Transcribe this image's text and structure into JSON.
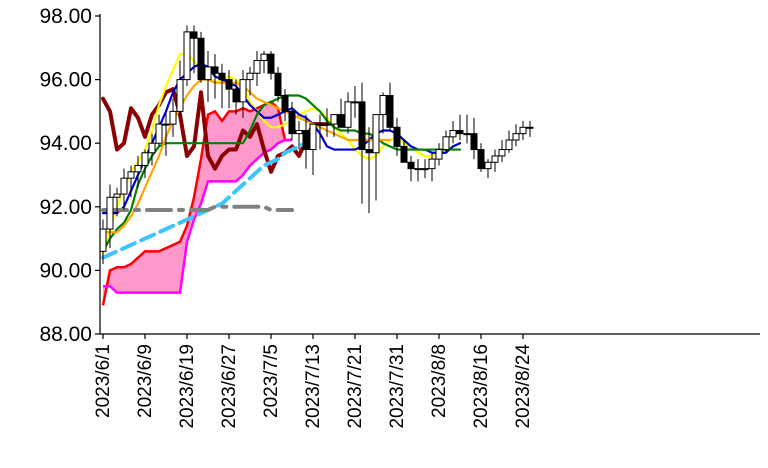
{
  "chart_data": {
    "type": "candlestick",
    "title": "",
    "xlabel": "",
    "ylabel": "",
    "ylim": [
      88,
      98
    ],
    "grid": false,
    "legend": "none",
    "y_ticks": [
      "88.00",
      "90.00",
      "92.00",
      "94.00",
      "96.00",
      "98.00"
    ],
    "x_tick_labels": [
      "2023/6/1",
      "2023/6/9",
      "2023/6/19",
      "2023/6/27",
      "2023/7/5",
      "2023/7/13",
      "2023/7/21",
      "2023/7/31",
      "2023/8/8",
      "2023/8/16",
      "2023/8/24"
    ],
    "dates": [
      "2023/6/1",
      "2023/6/2",
      "2023/6/5",
      "2023/6/6",
      "2023/6/7",
      "2023/6/8",
      "2023/6/9",
      "2023/6/12",
      "2023/6/13",
      "2023/6/14",
      "2023/6/15",
      "2023/6/16",
      "2023/6/19",
      "2023/6/20",
      "2023/6/21",
      "2023/6/22",
      "2023/6/23",
      "2023/6/26",
      "2023/6/27",
      "2023/6/28",
      "2023/6/29",
      "2023/6/30",
      "2023/7/3",
      "2023/7/4",
      "2023/7/5",
      "2023/7/6",
      "2023/7/7",
      "2023/7/10",
      "2023/7/11",
      "2023/7/12",
      "2023/7/13",
      "2023/7/14",
      "2023/7/17",
      "2023/7/18",
      "2023/7/19",
      "2023/7/20",
      "2023/7/21",
      "2023/7/24",
      "2023/7/25",
      "2023/7/26",
      "2023/7/27",
      "2023/7/28",
      "2023/7/31",
      "2023/8/1",
      "2023/8/2",
      "2023/8/3",
      "2023/8/4",
      "2023/8/7",
      "2023/8/8",
      "2023/8/9",
      "2023/8/10",
      "2023/8/11",
      "2023/8/14",
      "2023/8/15",
      "2023/8/16",
      "2023/8/17",
      "2023/8/18",
      "2023/8/21",
      "2023/8/22",
      "2023/8/23",
      "2023/8/24",
      "2023/8/25"
    ],
    "candles": {
      "open": [
        90.6,
        91.3,
        92.3,
        92.4,
        92.9,
        93.1,
        93.3,
        93.7,
        94.0,
        94.6,
        94.6,
        95.0,
        96.0,
        97.5,
        97.3,
        96.0,
        96.4,
        96.2,
        96.0,
        95.7,
        95.3,
        96.0,
        96.2,
        96.6,
        96.8,
        96.2,
        95.5,
        95.0,
        94.3,
        94.4,
        93.8,
        94.6,
        94.6,
        94.6,
        94.9,
        94.5,
        95.3,
        95.3,
        93.8,
        93.7,
        94.9,
        95.5,
        94.5,
        93.9,
        93.4,
        93.2,
        93.2,
        93.2,
        93.5,
        93.8,
        94.2,
        94.4,
        94.3,
        94.3,
        93.8,
        93.2,
        93.4,
        93.6,
        93.8,
        94.1,
        94.3,
        94.5
      ],
      "high": [
        91.6,
        92.7,
        92.6,
        93.2,
        93.3,
        93.6,
        93.8,
        94.3,
        94.9,
        95.0,
        95.4,
        96.6,
        97.7,
        97.7,
        97.5,
        96.9,
        96.8,
        96.5,
        96.3,
        96.0,
        96.3,
        96.4,
        96.9,
        96.9,
        96.9,
        96.4,
        95.7,
        95.3,
        94.7,
        94.9,
        94.3,
        94.9,
        95.1,
        94.9,
        95.4,
        95.6,
        95.8,
        95.9,
        94.5,
        94.4,
        95.6,
        95.9,
        94.8,
        94.1,
        93.6,
        93.5,
        93.5,
        93.7,
        94.0,
        94.4,
        94.7,
        94.9,
        94.9,
        94.8,
        94.0,
        93.5,
        93.8,
        94.1,
        94.4,
        94.6,
        94.7,
        94.7
      ],
      "low": [
        90.2,
        90.7,
        91.7,
        91.9,
        92.3,
        92.6,
        92.9,
        93.3,
        93.9,
        93.6,
        94.2,
        94.8,
        95.8,
        96.2,
        95.9,
        95.3,
        95.4,
        95.1,
        95.1,
        94.9,
        94.8,
        95.5,
        95.8,
        96.2,
        96.0,
        95.3,
        94.7,
        94.1,
        93.8,
        93.2,
        93.0,
        93.8,
        94.2,
        94.2,
        94.5,
        94.3,
        94.8,
        92.1,
        91.8,
        92.2,
        94.3,
        94.4,
        93.6,
        93.4,
        92.8,
        92.8,
        92.9,
        92.8,
        93.3,
        93.7,
        94.0,
        94.1,
        94.0,
        93.5,
        93.1,
        92.9,
        93.1,
        93.4,
        93.7,
        93.9,
        94.1,
        94.2
      ],
      "close": [
        91.3,
        92.3,
        92.4,
        92.9,
        93.1,
        93.3,
        93.7,
        94.0,
        94.6,
        94.6,
        95.0,
        96.0,
        97.5,
        97.3,
        96.0,
        96.4,
        96.2,
        96.0,
        95.7,
        95.3,
        96.0,
        96.2,
        96.6,
        96.8,
        96.2,
        95.5,
        95.0,
        94.3,
        94.4,
        93.8,
        94.6,
        94.6,
        94.6,
        94.9,
        94.5,
        95.3,
        95.3,
        93.8,
        93.7,
        94.9,
        95.5,
        94.5,
        93.9,
        93.4,
        93.2,
        93.2,
        93.2,
        93.5,
        93.8,
        94.2,
        94.4,
        94.3,
        94.3,
        93.8,
        93.2,
        93.4,
        93.6,
        93.8,
        94.1,
        94.3,
        94.5,
        94.5
      ]
    },
    "lines": [
      {
        "color": "#8b0000",
        "values": [
          95.4,
          95.0,
          93.8,
          94.0,
          95.1,
          94.8,
          94.2,
          94.9,
          95.2,
          95.6,
          95.7,
          94.9,
          93.6,
          93.9,
          95.6,
          93.6,
          93.2,
          93.6,
          93.8,
          93.8,
          94.4,
          94.2,
          94.6,
          93.8,
          93.1,
          93.6,
          93.7,
          93.9,
          93.6,
          94.1,
          94.6,
          94.6,
          94.6
        ]
      },
      {
        "color": "#ffff00",
        "values": [
          90.5,
          91.3,
          92.0,
          92.6,
          93.1,
          93.4,
          93.8,
          94.4,
          95.2,
          95.8,
          96.3,
          96.8,
          96.8,
          96.6,
          96.3,
          96.1,
          95.9,
          96.0,
          96.1,
          96.0,
          95.8,
          95.3,
          95.0,
          94.7,
          94.5,
          94.5,
          94.6,
          94.7,
          94.9,
          95.0,
          95.1,
          95.0,
          94.8,
          94.5,
          94.3,
          94.1,
          93.8,
          93.6,
          93.5,
          93.6,
          93.9,
          94.1,
          94.2,
          94.0,
          93.9,
          93.7,
          93.6,
          93.6,
          93.7,
          93.8,
          93.9,
          94.0
        ]
      },
      {
        "color": "#0000cd",
        "values": [
          91.8,
          91.8,
          91.8,
          92.0,
          92.5,
          93.0,
          93.5,
          94.0,
          94.5,
          95.0,
          95.6,
          96.0,
          96.2,
          96.4,
          96.5,
          96.4,
          96.1,
          96.0,
          95.9,
          95.8,
          95.5,
          95.2,
          95.0,
          94.8,
          94.8,
          94.9,
          95.0,
          95.1,
          94.9,
          94.8,
          94.6,
          94.3,
          93.9,
          93.8,
          93.8,
          93.8,
          93.8,
          93.9,
          94.1,
          94.3,
          94.4,
          94.4,
          94.3,
          94.1,
          93.9,
          93.8,
          93.8,
          93.7,
          93.7,
          93.7,
          93.9,
          94.0
        ]
      },
      {
        "color": "#008000",
        "values": [
          90.6,
          91.0,
          91.3,
          91.5,
          91.9,
          92.7,
          93.2,
          93.6,
          93.9,
          94.0,
          94.0,
          94.0,
          94.0,
          94.0,
          94.0,
          94.0,
          94.0,
          94.0,
          94.0,
          94.0,
          94.0,
          94.4,
          94.9,
          95.2,
          95.3,
          95.4,
          95.5,
          95.5,
          95.5,
          95.4,
          95.2,
          95.0,
          94.7,
          94.5,
          94.4,
          94.4,
          94.4,
          94.3,
          94.3,
          94.2,
          94.0,
          93.9,
          93.8,
          93.8,
          93.8,
          93.8,
          93.8,
          93.8,
          93.8,
          93.8,
          93.8,
          93.8
        ]
      },
      {
        "color": "#ffa500",
        "values": [
          91.2,
          91.2,
          91.2,
          91.4,
          91.7,
          92.1,
          92.6,
          93.1,
          93.6,
          94.2,
          94.7,
          95.1,
          95.5,
          95.8,
          96.0,
          96.0,
          95.9,
          95.9,
          95.9,
          95.9,
          95.8,
          95.6,
          95.4,
          95.3,
          95.2,
          95.1,
          95.0,
          94.9,
          94.8,
          94.7,
          94.6,
          94.5,
          94.4,
          94.3,
          94.2,
          94.1,
          94.1,
          94.1,
          94.1,
          94.1,
          94.1,
          94.1
        ]
      },
      {
        "color": "#40c4ff",
        "dashed": true,
        "values": [
          90.4,
          90.5,
          90.6,
          90.7,
          90.8,
          90.9,
          91.0,
          91.1,
          91.2,
          91.3,
          91.4,
          91.5,
          91.6,
          91.7,
          91.8,
          91.9,
          92.0,
          92.1,
          92.3,
          92.5,
          92.7,
          92.9,
          93.1,
          93.3,
          93.4,
          93.5,
          93.7,
          93.8,
          93.9,
          94.0,
          94.1
        ]
      },
      {
        "color": "#808080",
        "dash_dot": true,
        "values": [
          91.9,
          91.9,
          91.9,
          91.9,
          91.9,
          91.9,
          91.9,
          91.9,
          91.9,
          91.9,
          91.9,
          91.9,
          91.9,
          91.9,
          91.9,
          91.9,
          92.0,
          92.0,
          92.0,
          92.0,
          92.0,
          92.0,
          92.0,
          92.0,
          91.9,
          91.9,
          91.9,
          91.9
        ]
      }
    ],
    "cloud": {
      "fill": "#ff99cc",
      "span_a_color": "#ff0000",
      "span_b_color": "#ff00ff",
      "span_a": [
        88.9,
        90.0,
        90.1,
        90.1,
        90.2,
        90.4,
        90.6,
        90.6,
        90.6,
        90.7,
        90.8,
        90.9,
        91.4,
        92.3,
        93.5,
        94.9,
        95.0,
        94.7,
        95.0,
        95.0,
        95.1,
        95.0,
        95.1,
        95.2,
        95.3,
        95.1,
        94.1,
        94.1
      ],
      "span_b": [
        89.5,
        89.5,
        89.3,
        89.3,
        89.3,
        89.3,
        89.3,
        89.3,
        89.3,
        89.3,
        89.3,
        89.3,
        90.9,
        91.6,
        92.1,
        92.8,
        92.8,
        92.8,
        92.8,
        92.8,
        93.0,
        93.3,
        93.5,
        93.7,
        93.8,
        94.0,
        94.1,
        94.1
      ]
    }
  }
}
